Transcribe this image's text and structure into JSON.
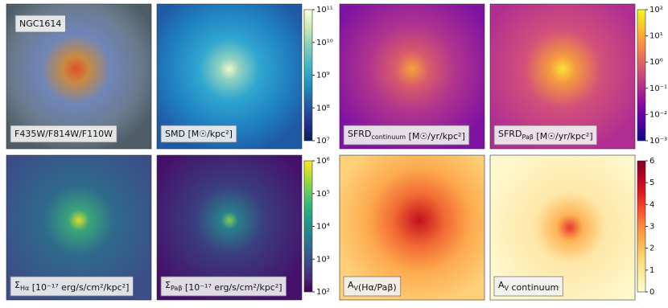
{
  "chart_data": [
    {
      "type": "colormap",
      "log": true,
      "panels": [
        {
          "labels": [
            [
              "NGC1614"
            ],
            [
              "F435W/F814W/F110W"
            ]
          ]
        },
        {
          "labels": [
            [
              "SMD [M☉/kpc²]"
            ]
          ]
        }
      ],
      "colors": [
        "#081d58",
        "#253494",
        "#225ea8",
        "#1d91c0",
        "#41b6c4",
        "#7fcdbb",
        "#c7e9b4",
        "#ffffd9"
      ],
      "ylim": [
        10000000,
        100000000000
      ],
      "yticks": [
        {
          "value": 10000000,
          "label": "10⁷"
        },
        {
          "value": 100000000,
          "label": "10⁸"
        },
        {
          "value": 1000000000,
          "label": "10⁹"
        },
        {
          "value": 10000000000,
          "label": "10¹⁰"
        },
        {
          "value": 100000000000,
          "label": "10¹¹"
        }
      ]
    },
    {
      "type": "colormap",
      "log": true,
      "panels": [
        {
          "labels": [
            [
              "SFRD",
              {
                "sub": "continuum"
              },
              " [M☉/yr/kpc²]"
            ]
          ]
        },
        {
          "labels": [
            [
              "SFRD",
              {
                "sub": "Paβ"
              },
              " [M☉/yr/kpc²]"
            ]
          ]
        }
      ],
      "colors": [
        "#0d0887",
        "#5302a3",
        "#8b0aa5",
        "#b83289",
        "#db5c68",
        "#f48849",
        "#febd2a",
        "#f0f921"
      ],
      "ylim": [
        0.001,
        100
      ],
      "yticks": [
        {
          "value": 0.001,
          "label": "10⁻³"
        },
        {
          "value": 0.01,
          "label": "10⁻²"
        },
        {
          "value": 0.1,
          "label": "10⁻¹"
        },
        {
          "value": 1,
          "label": "10⁰"
        },
        {
          "value": 10,
          "label": "10¹"
        },
        {
          "value": 100,
          "label": "10²"
        }
      ]
    },
    {
      "type": "colormap",
      "log": true,
      "panels": [
        {
          "labels": [
            [
              "Σ",
              {
                "sub": "Hα"
              },
              " [10⁻¹⁷ erg/s/cm²/kpc²]"
            ]
          ]
        },
        {
          "labels": [
            [
              "Σ",
              {
                "sub": "Paβ"
              },
              " [10⁻¹⁷ erg/s/cm²/kpc²]"
            ]
          ]
        }
      ],
      "colors": [
        "#440154",
        "#482878",
        "#3e4989",
        "#31688e",
        "#26828e",
        "#1f9e89",
        "#35b779",
        "#6ece58",
        "#b5de2b",
        "#fde725"
      ],
      "ylim": [
        100,
        1000000
      ],
      "yticks": [
        {
          "value": 100,
          "label": "10²"
        },
        {
          "value": 1000,
          "label": "10³"
        },
        {
          "value": 10000,
          "label": "10⁴"
        },
        {
          "value": 100000,
          "label": "10⁵"
        },
        {
          "value": 1000000,
          "label": "10⁶"
        }
      ]
    },
    {
      "type": "colormap",
      "log": false,
      "panels": [
        {
          "labels": [
            [
              "A",
              {
                "sub": "V"
              },
              "(Hα/Paβ)"
            ]
          ]
        },
        {
          "labels": [
            [
              "A",
              {
                "sub": "V"
              },
              " continuum"
            ]
          ]
        }
      ],
      "colors": [
        "#ffffcc",
        "#ffeda0",
        "#fed976",
        "#feb24c",
        "#fd8d3c",
        "#fc4e2a",
        "#e31a1c",
        "#bd0026",
        "#800026"
      ],
      "ylim": [
        0,
        6
      ],
      "yticks": [
        0,
        1,
        2,
        3,
        4,
        5,
        6
      ]
    }
  ]
}
